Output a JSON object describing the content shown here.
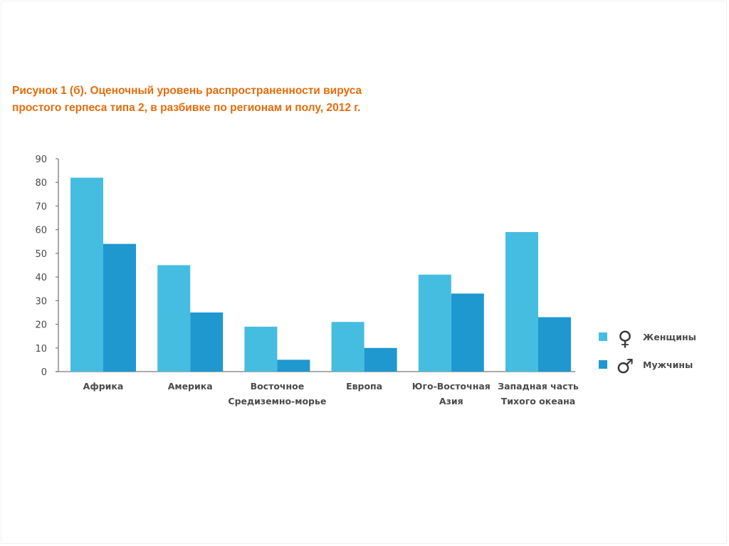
{
  "title": {
    "line1": "Рисунок 1 (б). Оценочный уровень распространенности вируса",
    "line2": "простого герпеса типа 2, в разбивке по регионам и полу, 2012 г."
  },
  "chart_data": {
    "type": "bar",
    "title": "Рисунок 1 (б). Оценочный уровень распространенности вируса простого герпеса типа 2, в разбивке по регионам и полу, 2012 г.",
    "xlabel": "",
    "ylabel": "",
    "ylim": [
      0,
      90
    ],
    "yticks": [
      "0",
      "10",
      "20",
      "30",
      "40",
      "50",
      "60",
      "70",
      "80",
      "90"
    ],
    "grid": false,
    "legend_position": "right",
    "categories": [
      [
        "Африка"
      ],
      [
        "Америка"
      ],
      [
        "Восточное",
        "Средиземно-морье"
      ],
      [
        "Европа"
      ],
      [
        "Юго-Восточная",
        "Азия"
      ],
      [
        "Западная часть",
        "Тихого океана"
      ]
    ],
    "series": [
      {
        "name": "Женщины",
        "symbol": "♀",
        "color": "#45bde0",
        "values": [
          82,
          45,
          19,
          21,
          41,
          59
        ]
      },
      {
        "name": "Мужчины",
        "symbol": "♂",
        "color": "#1e98cf",
        "values": [
          54,
          25,
          5,
          10,
          33,
          23
        ]
      }
    ]
  },
  "colors": {
    "title": "#e46c0a",
    "axis": "#7a7a7a",
    "text": "#4a4a4a"
  }
}
